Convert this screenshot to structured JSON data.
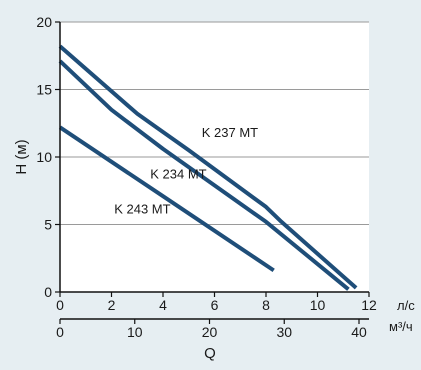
{
  "chart_data": {
    "type": "line",
    "colors": {
      "background": "#e6eef2",
      "plot": "#ffffff",
      "grid": "#9a9a9a",
      "line": "#1f4e79",
      "text": "#1a1a1a"
    },
    "ylabel": "H (м)",
    "xlabel": "Q",
    "ylim": [
      0,
      20
    ],
    "xlim": [
      0,
      12
    ],
    "grid": true,
    "y_ticks": [
      0,
      5,
      10,
      15,
      20
    ],
    "x_ticks": [
      0,
      2,
      4,
      6,
      8,
      10,
      12
    ],
    "x_unit": "л/с",
    "x2": {
      "ticks": [
        0,
        10,
        20,
        30,
        40
      ],
      "unit": "м³/ч"
    },
    "series": [
      {
        "name": "K 237 MT",
        "x": [
          0,
          3,
          5,
          8,
          8.6,
          11.5
        ],
        "y": [
          18.2,
          13.2,
          10.5,
          6.3,
          5.2,
          0.3
        ]
      },
      {
        "name": "K 234 MT",
        "x": [
          0,
          2,
          4,
          8,
          11.2
        ],
        "y": [
          17.1,
          13.5,
          10.6,
          5.2,
          0.2
        ]
      },
      {
        "name": "K 243 MT",
        "x": [
          0,
          4,
          8.3
        ],
        "y": [
          12.2,
          7.1,
          1.6
        ]
      }
    ]
  }
}
